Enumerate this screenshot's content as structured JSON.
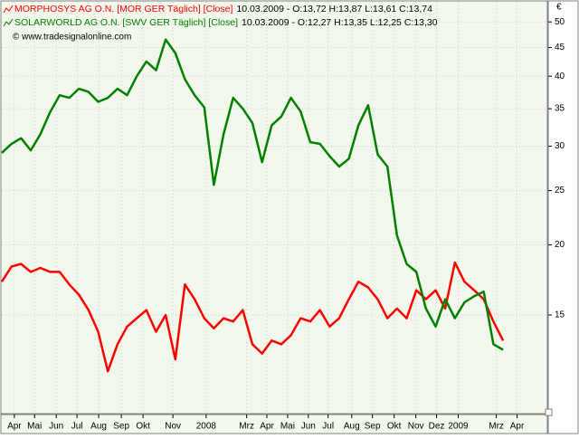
{
  "chart_data": {
    "type": "line",
    "source": "© www.tradesignalonline.com",
    "y_unit": "€",
    "series": [
      {
        "name": "MORPHOSYS AG O.N. [MOR GER  Täglich] [Close]",
        "quote": "10.03.2009 - O:13,72 H:13,87 L:13,61 C:13,74",
        "color": "#ff0000",
        "values": [
          17.2,
          18.3,
          18.5,
          17.9,
          18.2,
          17.9,
          17.9,
          17.0,
          16.3,
          15.3,
          14.0,
          11.9,
          13.3,
          14.3,
          14.8,
          15.3,
          14.0,
          15.0,
          12.5,
          17.0,
          16.0,
          14.8,
          14.2,
          14.8,
          14.6,
          15.3,
          13.3,
          12.8,
          13.5,
          13.3,
          13.8,
          14.8,
          14.6,
          15.3,
          14.3,
          14.8,
          16.0,
          17.2,
          16.8,
          16.0,
          14.8,
          15.4,
          14.8,
          16.6,
          16.0,
          16.6,
          15.4,
          18.6,
          17.2,
          16.6,
          16.0,
          14.6,
          13.5
        ]
      },
      {
        "name": "SOLARWORLD AG O.N. [SWV GER  Täglich] [Close]",
        "quote": "10.03.2009 - O:12,27 H:13,35 L:12,25 C:13,30",
        "color": "#008000",
        "values": [
          29.2,
          30.3,
          31.0,
          29.5,
          31.5,
          34.5,
          37.0,
          36.6,
          38.0,
          37.5,
          36.0,
          36.6,
          38.0,
          37.0,
          40.0,
          42.5,
          41.0,
          46.5,
          44.0,
          39.5,
          37.0,
          35.2,
          25.6,
          31.5,
          36.6,
          35.0,
          33.0,
          28.1,
          32.7,
          33.9,
          36.6,
          34.6,
          30.5,
          30.3,
          28.8,
          27.6,
          28.5,
          32.7,
          35.5,
          29.0,
          27.6,
          20.8,
          18.5,
          17.9,
          15.4,
          14.3,
          16.0,
          14.8,
          15.8,
          16.2,
          16.5,
          13.3,
          13.0
        ]
      }
    ],
    "x": [
      0,
      2,
      4,
      6,
      8,
      10,
      12,
      14,
      16,
      18,
      20,
      22,
      24,
      26,
      28,
      30,
      32,
      34,
      36,
      38,
      40,
      42,
      44,
      46,
      48,
      50,
      52,
      54,
      56,
      58,
      60,
      62,
      64,
      66,
      68,
      70,
      72,
      74,
      76,
      78,
      80,
      82,
      84,
      86,
      88,
      90,
      92,
      94,
      96,
      98,
      100,
      102,
      104
    ],
    "xlim": [
      0,
      113
    ],
    "xticks": [
      {
        "value": 2.6,
        "label": "Apr"
      },
      {
        "value": 6.8,
        "label": "Mai"
      },
      {
        "value": 11.3,
        "label": "Jun"
      },
      {
        "value": 15.6,
        "label": "Jul"
      },
      {
        "value": 20.1,
        "label": "Aug"
      },
      {
        "value": 24.8,
        "label": "Sep"
      },
      {
        "value": 29.3,
        "label": "Okt"
      },
      {
        "value": 35.5,
        "label": "Nov"
      },
      {
        "value": 42.4,
        "label": "2008"
      },
      {
        "value": 50.8,
        "label": "Mrz"
      },
      {
        "value": 55,
        "label": "Apr"
      },
      {
        "value": 59.3,
        "label": "Mai"
      },
      {
        "value": 63.6,
        "label": "Jun"
      },
      {
        "value": 67.7,
        "label": "Jul"
      },
      {
        "value": 72.6,
        "label": "Aug"
      },
      {
        "value": 76.9,
        "label": "Sep"
      },
      {
        "value": 81.4,
        "label": "Okt"
      },
      {
        "value": 85.9,
        "label": "Nov"
      },
      {
        "value": 90.2,
        "label": "Dez"
      },
      {
        "value": 94.7,
        "label": "2009"
      },
      {
        "value": 102.6,
        "label": "Mrz"
      },
      {
        "value": 106.9,
        "label": "Apr"
      }
    ],
    "ylim": [
      10,
      54.3
    ],
    "yticks": [
      15,
      20,
      25,
      30,
      35,
      40,
      45,
      50
    ],
    "log_y": true,
    "grid": true
  }
}
